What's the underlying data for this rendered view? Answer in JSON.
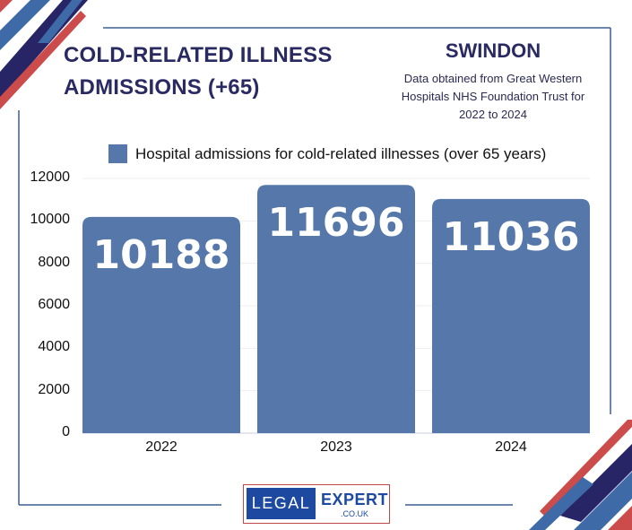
{
  "header": {
    "title_line1": "COLD-RELATED ILLNESS",
    "title_line2": "ADMISSIONS (+65)",
    "location": "SWINDON",
    "source_line1": "Data obtained from Great Western",
    "source_line2": "Hospitals NHS Foundation Trust for",
    "source_line3": "2022 to 2024"
  },
  "logo": {
    "left_text": "LEGAL",
    "right_text": "EXPERT",
    "sub_text": ".CO.UK"
  },
  "colors": {
    "bar": "#5577aa",
    "title": "#2a2a62",
    "accent_red": "#cc4b4b",
    "accent_navy": "#272566",
    "accent_blue": "#3e6aa8",
    "frame": "#3d5f8f"
  },
  "chart_data": {
    "type": "bar",
    "title": "",
    "xlabel": "",
    "ylabel": "",
    "categories": [
      "2022",
      "2023",
      "2024"
    ],
    "series": [
      {
        "name": "Hospital admissions for cold-related illnesses (over 65 years)",
        "values": [
          10188,
          11696,
          11036
        ]
      }
    ],
    "data_labels": [
      "10188",
      "11696",
      "11036"
    ],
    "ylim": [
      0,
      12000
    ],
    "yticks": [
      "0",
      "2000",
      "4000",
      "6000",
      "8000",
      "10000",
      "12000"
    ],
    "grid": true,
    "legend": "top"
  }
}
